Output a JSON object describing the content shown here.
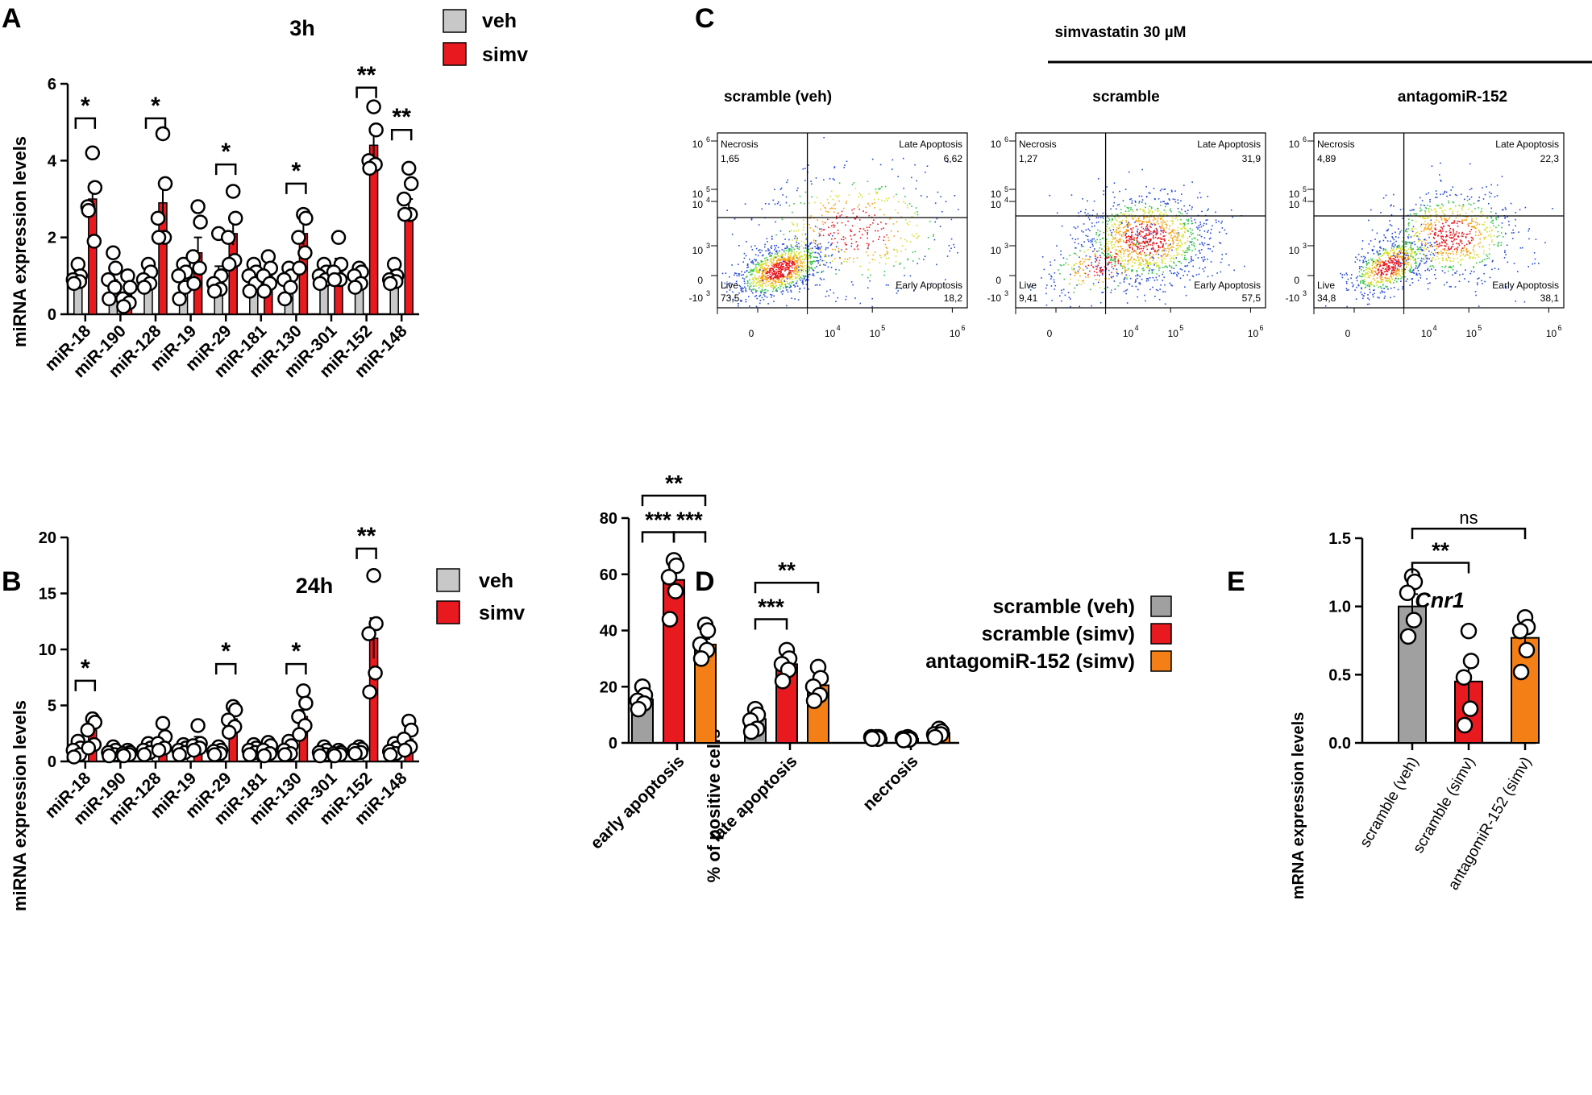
{
  "panel_labels": {
    "a": "A",
    "b": "B",
    "c": "C",
    "d": "D",
    "e": "E"
  },
  "colors": {
    "veh": "#c8c8c8",
    "simv": "#e8191f",
    "antago": "#f57f17",
    "scramble_veh_E": "#a0a0a0"
  },
  "chart_data": [
    {
      "id": "A",
      "type": "bar",
      "title": "3h",
      "ylabel": "miRNA expression levels",
      "ylim": [
        0,
        6
      ],
      "yticks": [
        "0",
        "2",
        "4",
        "6"
      ],
      "categories": [
        "miR-18",
        "miR-190",
        "miR-128",
        "miR-19",
        "miR-29",
        "miR-181",
        "miR-130",
        "miR-301",
        "miR-152",
        "miR-148"
      ],
      "legend": [
        "veh",
        "simv"
      ],
      "series": [
        {
          "name": "veh",
          "values": [
            1.0,
            0.9,
            1.0,
            1.0,
            0.95,
            1.0,
            0.9,
            1.0,
            1.0,
            1.0
          ],
          "errors": [
            0.12,
            0.2,
            0.12,
            0.2,
            0.3,
            0.15,
            0.25,
            0.1,
            0.12,
            0.12
          ],
          "points": [
            [
              1.3,
              1.0,
              0.9,
              0.85,
              0.8
            ],
            [
              1.6,
              1.2,
              0.9,
              0.7,
              0.4
            ],
            [
              1.3,
              1.1,
              0.9,
              0.8,
              0.7
            ],
            [
              1.3,
              1.1,
              1.0,
              0.7,
              0.4
            ],
            [
              2.1,
              1.0,
              0.8,
              0.65,
              0.6
            ],
            [
              1.3,
              1.1,
              1.0,
              0.8,
              0.6
            ],
            [
              1.2,
              1.0,
              0.9,
              0.7,
              0.4
            ],
            [
              1.3,
              1.1,
              1.0,
              0.9,
              0.8
            ],
            [
              1.2,
              1.1,
              1.0,
              0.8,
              0.7
            ],
            [
              1.3,
              1.0,
              0.9,
              0.85,
              0.8
            ]
          ]
        },
        {
          "name": "simv",
          "values": [
            3.0,
            0.5,
            2.9,
            1.6,
            2.1,
            1.0,
            2.1,
            1.2,
            4.4,
            2.7
          ],
          "errors": [
            0.4,
            0.15,
            0.5,
            0.4,
            0.3,
            0.2,
            0.3,
            0.25,
            0.4,
            0.3
          ],
          "points": [
            [
              4.2,
              3.3,
              2.8,
              1.9,
              2.7
            ],
            [
              1.0,
              0.7,
              0.4,
              0.3,
              0.2
            ],
            [
              4.7,
              3.4,
              2.5,
              2.0,
              2.0
            ],
            [
              2.8,
              2.4,
              1.5,
              1.2,
              0.8
            ],
            [
              3.2,
              2.5,
              2.0,
              1.4,
              1.3
            ],
            [
              1.5,
              1.2,
              1.0,
              0.8,
              0.6
            ],
            [
              2.6,
              2.5,
              2.0,
              1.6,
              1.2
            ],
            [
              2.0,
              1.3,
              1.1,
              0.9,
              0.9
            ],
            [
              5.4,
              4.8,
              4.0,
              3.9,
              3.8
            ],
            [
              3.8,
              3.4,
              3.0,
              2.6,
              2.6
            ]
          ]
        }
      ],
      "significance": [
        {
          "category": "miR-18",
          "label": "*",
          "value": 5.1
        },
        {
          "category": "miR-128",
          "label": "*",
          "value": 5.1
        },
        {
          "category": "miR-29",
          "label": "*",
          "value": 3.9
        },
        {
          "category": "miR-130",
          "label": "*",
          "value": 3.4
        },
        {
          "category": "miR-152",
          "label": "**",
          "value": 5.9
        },
        {
          "category": "miR-148",
          "label": "**",
          "value": 4.8
        }
      ]
    },
    {
      "id": "B",
      "type": "bar",
      "title": "24h",
      "ylabel": "miRNA expression levels",
      "ylim": [
        0,
        20
      ],
      "yticks": [
        "0",
        "5",
        "10",
        "15",
        "20"
      ],
      "categories": [
        "miR-18",
        "miR-190",
        "miR-128",
        "miR-19",
        "miR-29",
        "miR-181",
        "miR-130",
        "miR-301",
        "miR-152",
        "miR-148"
      ],
      "legend": [
        "veh",
        "simv"
      ],
      "series": [
        {
          "name": "veh",
          "values": [
            1.0,
            0.9,
            1.0,
            1.0,
            0.9,
            1.0,
            1.0,
            0.9,
            1.0,
            1.0
          ],
          "errors": [
            0.3,
            0.2,
            0.2,
            0.2,
            0.2,
            0.2,
            0.3,
            0.2,
            0.2,
            0.3
          ],
          "points": [
            [
              1.8,
              1.2,
              1.0,
              0.6,
              0.4
            ],
            [
              1.3,
              1.0,
              0.8,
              0.6,
              0.5
            ],
            [
              1.6,
              1.2,
              1.0,
              0.8,
              0.6
            ],
            [
              1.5,
              1.2,
              1.0,
              0.8,
              0.6
            ],
            [
              1.3,
              1.0,
              0.9,
              0.7,
              0.6
            ],
            [
              1.5,
              1.2,
              1.0,
              0.8,
              0.6
            ],
            [
              1.8,
              1.4,
              1.0,
              0.7,
              0.6
            ],
            [
              1.3,
              1.0,
              0.8,
              0.6,
              0.5
            ],
            [
              1.3,
              1.1,
              1.0,
              0.8,
              0.7
            ],
            [
              1.6,
              1.2,
              0.9,
              0.7,
              0.6
            ]
          ]
        },
        {
          "name": "simv",
          "values": [
            2.8,
            0.7,
            2.0,
            1.8,
            3.8,
            1.0,
            4.0,
            0.8,
            11.0,
            2.0
          ],
          "errors": [
            0.5,
            0.15,
            0.5,
            0.4,
            0.5,
            0.2,
            0.6,
            0.15,
            1.8,
            0.6
          ],
          "points": [
            [
              3.8,
              3.5,
              2.8,
              1.5,
              1.2
            ],
            [
              1.0,
              0.8,
              0.7,
              0.6,
              0.5
            ],
            [
              3.4,
              2.2,
              1.6,
              1.2,
              1.0
            ],
            [
              3.2,
              1.6,
              1.4,
              1.2,
              1.0
            ],
            [
              4.9,
              4.6,
              3.7,
              3.1,
              2.6
            ],
            [
              1.7,
              1.4,
              1.0,
              0.7,
              0.5
            ],
            [
              6.3,
              5.2,
              4.0,
              3.2,
              2.4
            ],
            [
              1.0,
              0.8,
              0.7,
              0.6,
              0.5
            ],
            [
              16.6,
              12.3,
              11.4,
              7.9,
              6.2
            ],
            [
              3.6,
              2.8,
              2.0,
              1.3,
              1.0
            ]
          ]
        }
      ],
      "significance": [
        {
          "category": "miR-18",
          "label": "*",
          "value": 7.2
        },
        {
          "category": "miR-29",
          "label": "*",
          "value": 8.7
        },
        {
          "category": "miR-130",
          "label": "*",
          "value": 8.7
        },
        {
          "category": "miR-152",
          "label": "**",
          "value": 19.0
        }
      ]
    },
    {
      "id": "D",
      "type": "bar",
      "ylabel": "% of positive cells",
      "ylim": [
        0,
        80
      ],
      "yticks": [
        "0",
        "20",
        "40",
        "60",
        "80"
      ],
      "categories": [
        "early apoptosis",
        "late apoptosis",
        "necrosis"
      ],
      "legend": [
        "scramble (veh)",
        "scramble (simv)",
        "antagomiR-152 (simv)"
      ],
      "series": [
        {
          "name": "scramble (veh)",
          "values": [
            15.5,
            8.5,
            1.8
          ],
          "errors": [
            1.6,
            1.6,
            0.3
          ],
          "points": [
            [
              20,
              17,
              15,
              14,
              12
            ],
            [
              12,
              10,
              8,
              5,
              4
            ],
            [
              2,
              2,
              2,
              1.5,
              1.5
            ]
          ]
        },
        {
          "name": "scramble (simv)",
          "values": [
            58,
            28,
            1.5
          ],
          "errors": [
            4,
            2.5,
            0.3
          ],
          "points": [
            [
              65,
              63,
              59,
              54,
              44
            ],
            [
              33,
              30,
              28,
              26,
              22
            ],
            [
              2,
              1.5,
              1.5,
              1.2,
              1
            ]
          ]
        },
        {
          "name": "antagomiR-152 (simv)",
          "values": [
            35,
            20.5,
            3.5
          ],
          "errors": [
            2,
            2.5,
            0.6
          ],
          "points": [
            [
              42,
              40,
              35,
              33,
              30
            ],
            [
              27,
              23,
              20,
              17,
              15
            ],
            [
              5,
              4,
              3,
              3,
              2
            ]
          ]
        }
      ],
      "significance": [
        {
          "label": "**",
          "from": [
            0,
            0
          ],
          "to": [
            0,
            2
          ],
          "value": 88
        },
        {
          "label": "***",
          "from": [
            0,
            0
          ],
          "to": [
            0,
            1
          ],
          "value": 75
        },
        {
          "label": "***",
          "from": [
            0,
            1
          ],
          "to": [
            0,
            2
          ],
          "value": 75
        },
        {
          "label": "**",
          "from": [
            1,
            0
          ],
          "to": [
            1,
            2
          ],
          "value": 57
        },
        {
          "label": "***",
          "from": [
            1,
            0
          ],
          "to": [
            1,
            1
          ],
          "value": 44
        }
      ]
    },
    {
      "id": "E",
      "type": "bar",
      "title": "Cnr1",
      "ylabel": "mRNA expression levels",
      "ylim": [
        0,
        1.5
      ],
      "yticks": [
        "0.0",
        "0.5",
        "1.0",
        "1.5"
      ],
      "categories": [
        "scramble (veh)",
        "scramble (simv)",
        "antagomiR-152 (simv)"
      ],
      "values": [
        1.0,
        0.45,
        0.77
      ],
      "errors": [
        0.09,
        0.14,
        0.06
      ],
      "points": [
        [
          1.22,
          1.18,
          1.1,
          0.9,
          0.78
        ],
        [
          0.82,
          0.6,
          0.48,
          0.25,
          0.13
        ],
        [
          0.92,
          0.85,
          0.82,
          0.68,
          0.52
        ]
      ],
      "significance": [
        {
          "label": "**",
          "from": 0,
          "to": 1,
          "value": 1.32
        },
        {
          "label": "ns",
          "from": 0,
          "to": 2,
          "value": 1.57
        }
      ]
    }
  ],
  "panel_c": {
    "treatment_header": "simvastatin 30 µM",
    "plots": [
      {
        "name": "scramble (veh)",
        "quadrants": {
          "necrosis": "1,65",
          "late": "6,62",
          "live": "73,5",
          "early": "18,2"
        },
        "profile": "veh"
      },
      {
        "name": "scramble",
        "quadrants": {
          "necrosis": "1,27",
          "late": "31,9",
          "live": "9,41",
          "early": "57,5"
        },
        "profile": "simv"
      },
      {
        "name": "antagomiR-152",
        "quadrants": {
          "necrosis": "4,89",
          "late": "22,3",
          "live": "34,8",
          "early": "38,1"
        },
        "profile": "antago"
      }
    ],
    "quadrant_labels": {
      "necrosis": "Necrosis",
      "late": "Late Apoptosis",
      "live": "Live",
      "early": "Early Apoptosis"
    },
    "y_ticks": [
      "10",
      "10",
      "10",
      "10",
      "0",
      "-10"
    ],
    "y_exps": [
      "6",
      "5",
      "4",
      "3",
      "",
      "3"
    ],
    "x_ticks": [
      "0",
      "10",
      "10",
      "10"
    ],
    "x_exps": [
      "",
      "4",
      "5",
      "6"
    ]
  }
}
